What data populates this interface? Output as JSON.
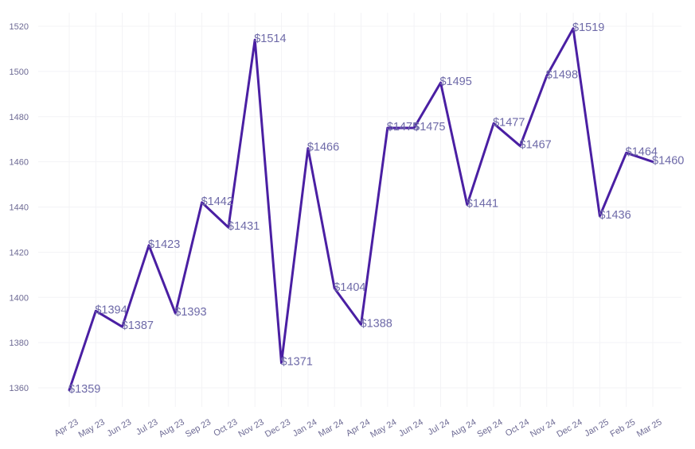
{
  "chart_data": {
    "type": "line",
    "categories": [
      "Apr 23",
      "May 23",
      "Jun 23",
      "Jul 23",
      "Aug 23",
      "Sep 23",
      "Oct 23",
      "Nov 23",
      "Dec 23",
      "Jan 24",
      "Mar 24",
      "Apr 24",
      "May 24",
      "Jun 24",
      "Jul 24",
      "Aug 24",
      "Sep 24",
      "Oct 24",
      "Nov 24",
      "Dec 24",
      "Jan 25",
      "Feb 25",
      "Mar 25"
    ],
    "series": [
      {
        "values": [
          1359,
          1394,
          1387,
          1423,
          1393,
          1442,
          1431,
          1514,
          1371,
          1466,
          1404,
          1388,
          1475,
          1475,
          1495,
          1441,
          1477,
          1467,
          1498,
          1519,
          1436,
          1464,
          1460
        ],
        "labels": [
          "$1359",
          "$1394",
          "$1387",
          "$1423",
          "$1393",
          "$1442",
          "$1431",
          "$1514",
          "$1371",
          "$1466",
          "$1404",
          "$1388",
          "$1475",
          "$1475",
          "$1495",
          "$1441",
          "$1477",
          "$1467",
          "$1498",
          "$1519",
          "$1436",
          "$1464",
          "$1460"
        ],
        "color": "#4a1fa3"
      }
    ],
    "yticks": [
      1360,
      1380,
      1400,
      1420,
      1440,
      1460,
      1480,
      1500,
      1520
    ],
    "ylim": [
      1349,
      1526
    ],
    "grid": true,
    "label_color": "#6e6aa8",
    "tick_color": "#6d6a94"
  }
}
